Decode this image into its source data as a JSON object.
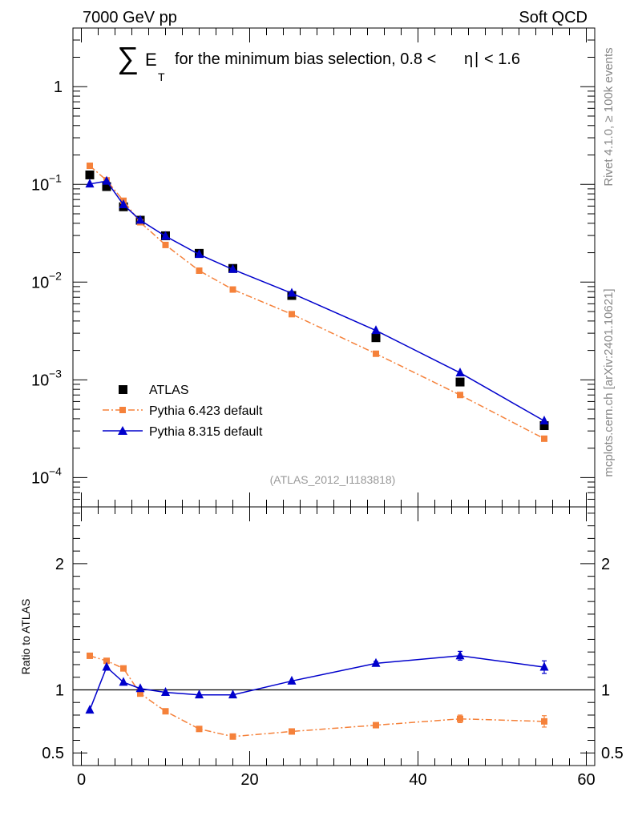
{
  "header": {
    "left_label": "7000 GeV pp",
    "right_label": "Soft QCD"
  },
  "side_labels": {
    "rivet": "Rivet 4.1.0, ≥ 100k events",
    "mcplots": "mcplots.cern.ch [arXiv:2401.10621]"
  },
  "colors": {
    "atlas": "#000000",
    "pythia6": "#f5813a",
    "pythia8": "#0000cc",
    "watermark": "#999999"
  },
  "chart_data": [
    {
      "panel": "main",
      "type": "line",
      "title": "∑ E_T for the minimum bias selection, 0.8 < |η| < 1.6",
      "title_parts": {
        "sum_symbol": "∑",
        "e_letter": "E",
        "sub_t": "T",
        "text": "for the minimum bias selection, 0.8 <",
        "eta": "η",
        "bar": "|",
        "tail": "< 1.6"
      },
      "yscale": "log",
      "xlim": [
        -1,
        61
      ],
      "ylim_log10": [
        -4.3,
        0.6
      ],
      "ytick_values": [
        1,
        0.1,
        0.01,
        0.001,
        0.0001
      ],
      "ytick_labels": [
        {
          "base": "1",
          "exp": ""
        },
        {
          "base": "10",
          "exp": "−1"
        },
        {
          "base": "10",
          "exp": "−2"
        },
        {
          "base": "10",
          "exp": "−3"
        },
        {
          "base": "10",
          "exp": "−4"
        }
      ],
      "watermark": "(ATLAS_2012_I1183818)",
      "legend_position": "lower-left",
      "series": [
        {
          "key": "atlas",
          "name": "ATLAS",
          "style": "marker",
          "x": [
            1,
            3,
            5,
            7,
            10,
            14,
            18,
            25,
            35,
            45,
            55
          ],
          "y": [
            0.125,
            0.095,
            0.059,
            0.043,
            0.0298,
            0.0197,
            0.0138,
            0.0073,
            0.0027,
            0.00095,
            0.00034
          ]
        },
        {
          "key": "pythia6",
          "name": "Pythia 6.423 default",
          "style": "dashdot-square",
          "x": [
            1,
            3,
            5,
            7,
            10,
            14,
            18,
            25,
            35,
            45,
            55
          ],
          "y": [
            0.155,
            0.11,
            0.068,
            0.041,
            0.024,
            0.0131,
            0.0084,
            0.0047,
            0.00185,
            0.0007,
            0.00025
          ]
        },
        {
          "key": "pythia8",
          "name": "Pythia 8.315 default",
          "style": "solid-triangle",
          "x": [
            1,
            3,
            5,
            7,
            10,
            14,
            18,
            25,
            35,
            45,
            55
          ],
          "y": [
            0.101,
            0.108,
            0.062,
            0.043,
            0.0295,
            0.0192,
            0.0135,
            0.0077,
            0.0032,
            0.00118,
            0.00038
          ]
        }
      ]
    },
    {
      "panel": "ratio",
      "type": "line",
      "ylabel": "Ratio to ATLAS",
      "xlim": [
        -1,
        61
      ],
      "ylim": [
        0.4,
        2.45
      ],
      "xticks": [
        0,
        20,
        40,
        60
      ],
      "xtick_labels": [
        "0",
        "20",
        "40",
        "60"
      ],
      "yticks": [
        0.5,
        1,
        2
      ],
      "ytick_labels": [
        "0.5",
        "1",
        "2"
      ],
      "reference_line": 1,
      "series": [
        {
          "key": "pythia6",
          "name": "Pythia 6.423 default",
          "x": [
            1,
            3,
            5,
            7,
            10,
            14,
            18,
            25,
            35,
            45,
            55
          ],
          "y": [
            1.27,
            1.23,
            1.17,
            0.97,
            0.83,
            0.69,
            0.63,
            0.67,
            0.72,
            0.77,
            0.75
          ],
          "err": [
            0.01,
            0.01,
            0.01,
            0.01,
            0.01,
            0.01,
            0.01,
            0.01,
            0.015,
            0.03,
            0.045
          ]
        },
        {
          "key": "pythia8",
          "name": "Pythia 8.315 default",
          "x": [
            1,
            3,
            5,
            7,
            10,
            14,
            18,
            25,
            35,
            45,
            55
          ],
          "y": [
            0.84,
            1.18,
            1.06,
            1.01,
            0.98,
            0.96,
            0.96,
            1.07,
            1.21,
            1.27,
            1.18
          ],
          "err": [
            0.01,
            0.01,
            0.01,
            0.01,
            0.01,
            0.01,
            0.01,
            0.01,
            0.015,
            0.035,
            0.05
          ]
        }
      ]
    }
  ]
}
